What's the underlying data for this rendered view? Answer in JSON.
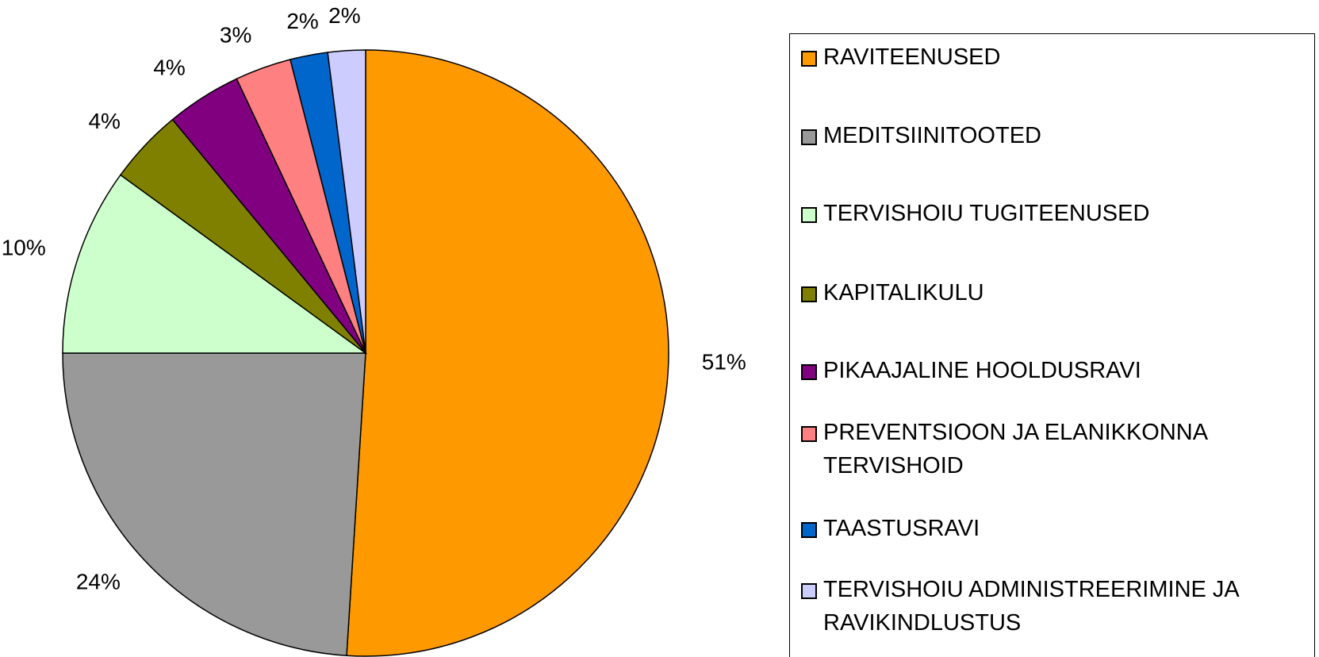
{
  "chart_data": {
    "type": "pie",
    "categories": [
      "RAVITEENUSED",
      "MEDITSIINITOOTED",
      "TERVISHOIU TUGITEENUSED",
      "KAPITALIKULU",
      "PIKAAJALINE HOOLDUSRAVI",
      "PREVENTSIOON JA ELANIKKONNA TERVISHOID",
      "TAASTUSRAVI",
      "TERVISHOIU ADMINISTREERIMINE JA RAVIKINDLUSTUS"
    ],
    "values": [
      51,
      24,
      10,
      4,
      4,
      3,
      2,
      2
    ],
    "value_labels": [
      "51%",
      "24%",
      "10%",
      "4%",
      "4%",
      "3%",
      "2%",
      "2%"
    ],
    "colors": [
      "#FF9900",
      "#999999",
      "#CCFFCC",
      "#808000",
      "#800080",
      "#FF8080",
      "#0066CC",
      "#CCCCFF"
    ],
    "legend": "right"
  }
}
